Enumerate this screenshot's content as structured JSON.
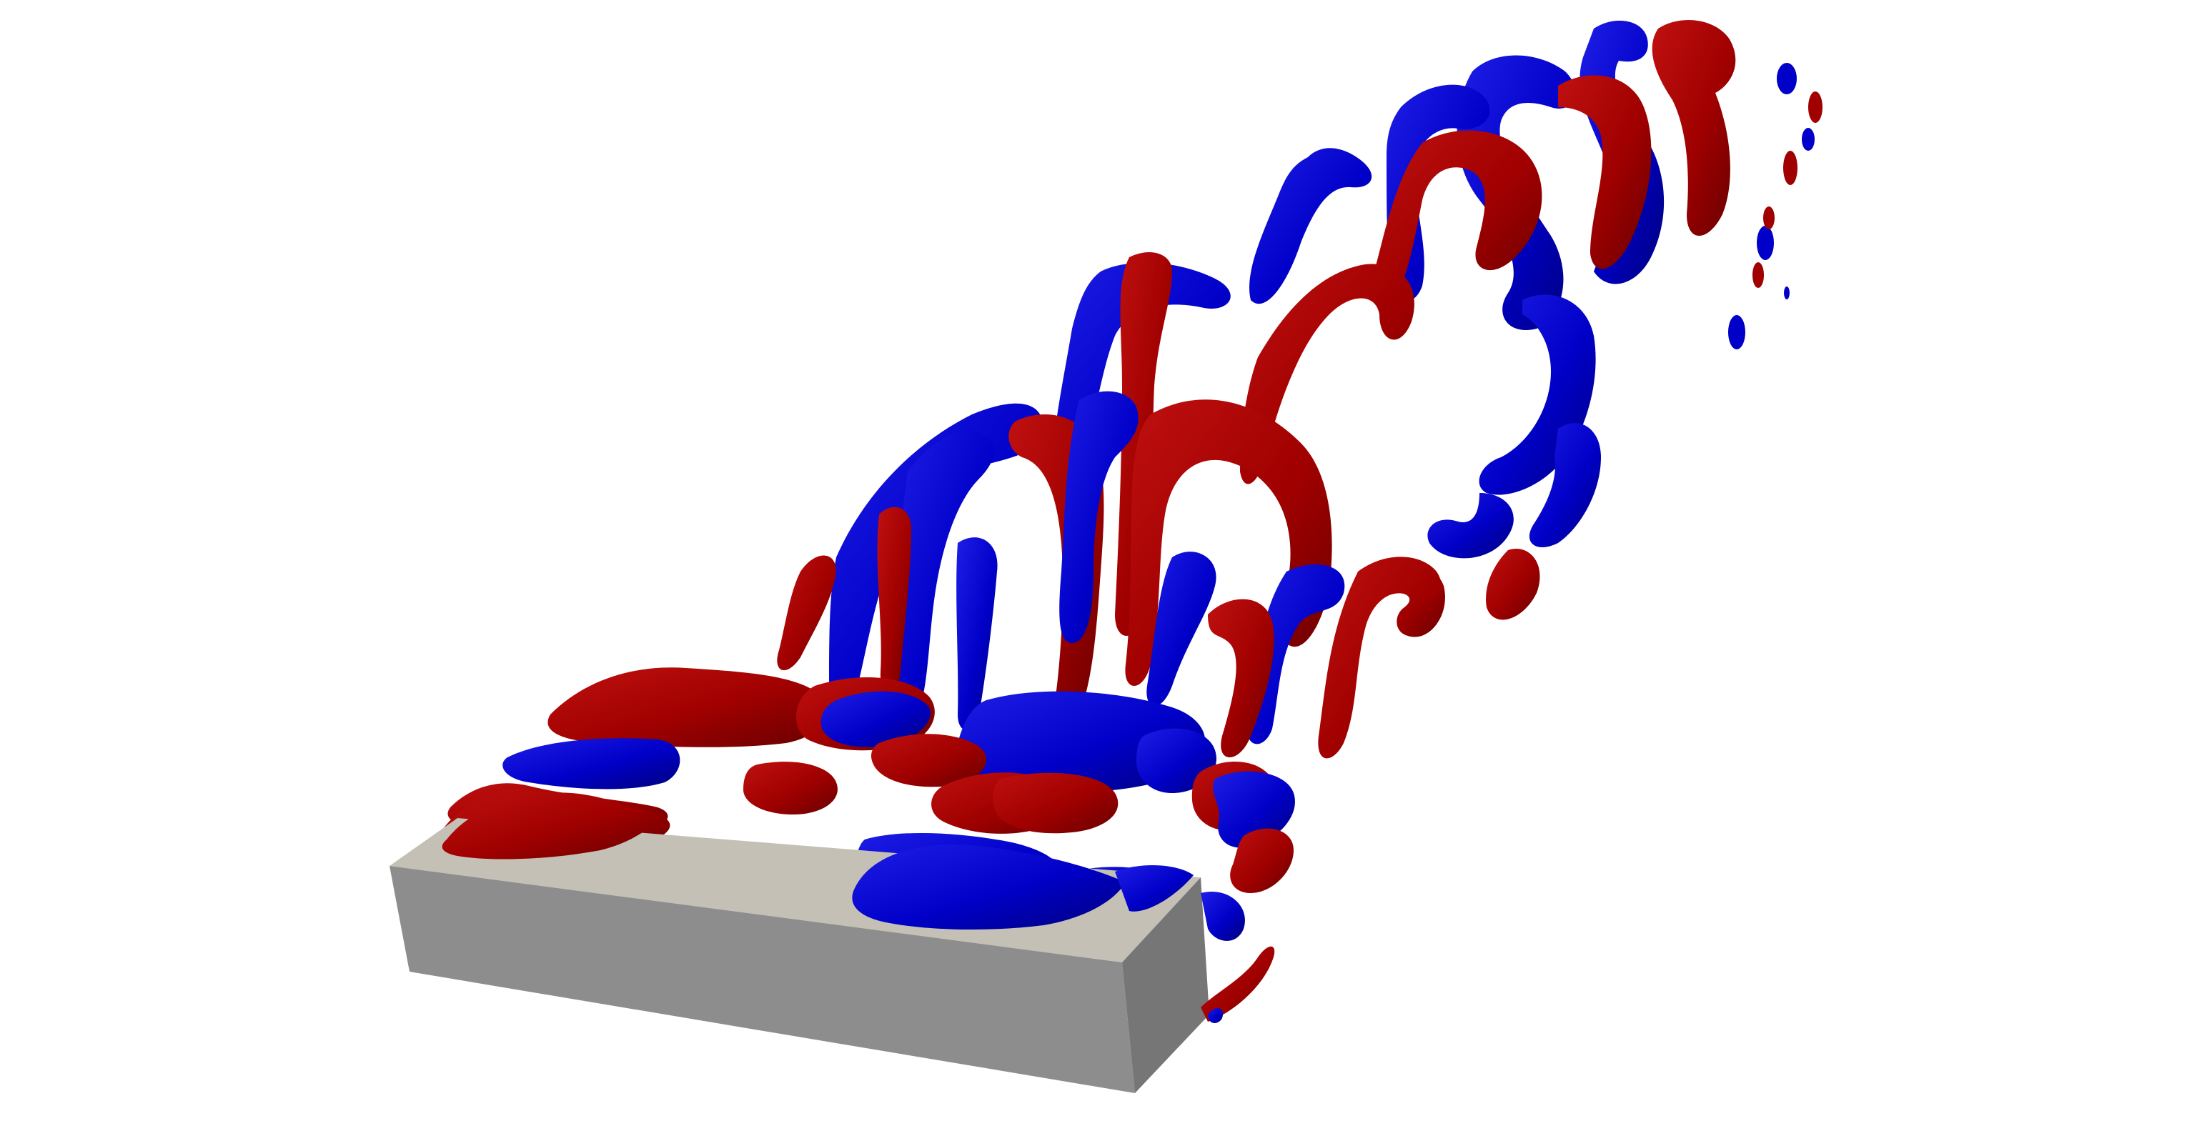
{
  "scene": {
    "subject": "3d-flow-visualization",
    "background_color": "#ffffff",
    "colors": {
      "positive_isosurface": "#a00000",
      "positive_isosurface_dark": "#6e0000",
      "negative_isosurface": "#0000c8",
      "negative_isosurface_dark": "#00008a",
      "body_top": "#c4c0b6",
      "body_front": "#8d8d8d",
      "body_side": "#767676"
    }
  }
}
